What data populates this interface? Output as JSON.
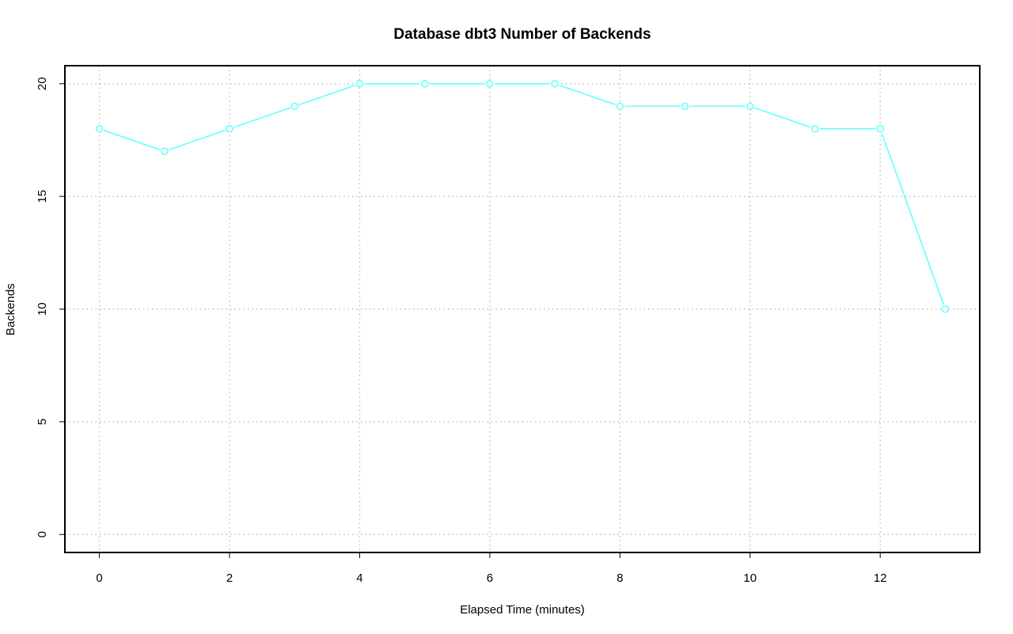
{
  "chart_data": {
    "type": "line",
    "title": "Database dbt3 Number of Backends",
    "xlabel": "Elapsed Time (minutes)",
    "ylabel": "Backends",
    "xlim": [
      -0.53,
      13.53
    ],
    "ylim": [
      -0.8,
      20.8
    ],
    "xticks": [
      0,
      2,
      4,
      6,
      8,
      10,
      12
    ],
    "yticks": [
      0,
      5,
      10,
      15,
      20
    ],
    "grid": true,
    "legend": "none",
    "series": [
      {
        "color": "#66ffff",
        "x": [
          0,
          1,
          2,
          3,
          4,
          5,
          6,
          7,
          8,
          9,
          10,
          11,
          12,
          13
        ],
        "y": [
          18,
          17,
          18,
          19,
          20,
          20,
          20,
          20,
          19,
          19,
          19,
          18,
          18,
          10
        ]
      }
    ]
  }
}
